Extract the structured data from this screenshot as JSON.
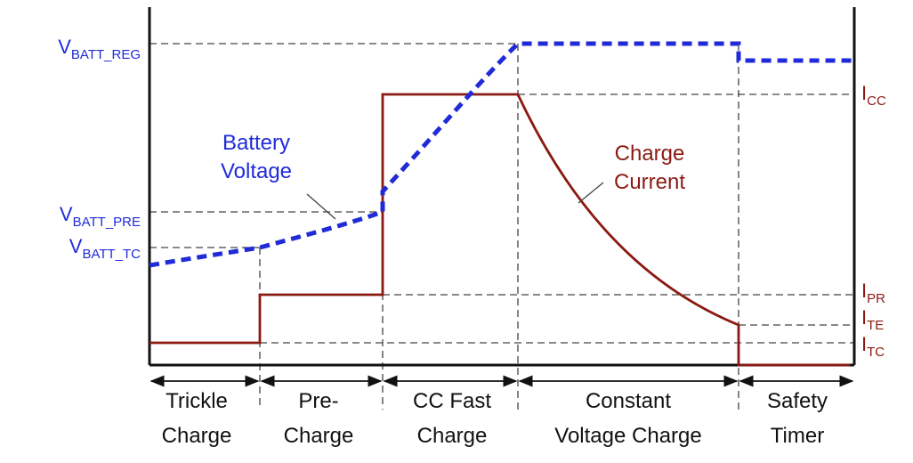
{
  "colors": {
    "voltage": "#1f2bd9",
    "current": "#8b1a12",
    "axis": "#111111",
    "guide": "#444444"
  },
  "voltage_labels": {
    "reg": {
      "main": "V",
      "sub": "BATT_REG"
    },
    "pre": {
      "main": "V",
      "sub": "BATT_PRE"
    },
    "tc": {
      "main": "V",
      "sub": "BATT_TC"
    }
  },
  "current_labels": {
    "cc": {
      "main": "I",
      "sub": "CC"
    },
    "pre": {
      "main": "I",
      "sub": "PR"
    },
    "term": {
      "main": "I",
      "sub": "TE"
    },
    "tc": {
      "main": "I",
      "sub": "TC"
    }
  },
  "curve_labels": {
    "battery_voltage": [
      "Battery",
      "Voltage"
    ],
    "charge_current": [
      "Charge",
      "Current"
    ]
  },
  "phases": [
    {
      "line1": "Trickle",
      "line2": "Charge"
    },
    {
      "line1": "Pre-",
      "line2": "Charge"
    },
    {
      "line1": "CC Fast",
      "line2": "Charge"
    },
    {
      "line1": "Constant",
      "line2": "Voltage Charge"
    },
    {
      "line1": "Safety",
      "line2": "Timer"
    }
  ]
}
